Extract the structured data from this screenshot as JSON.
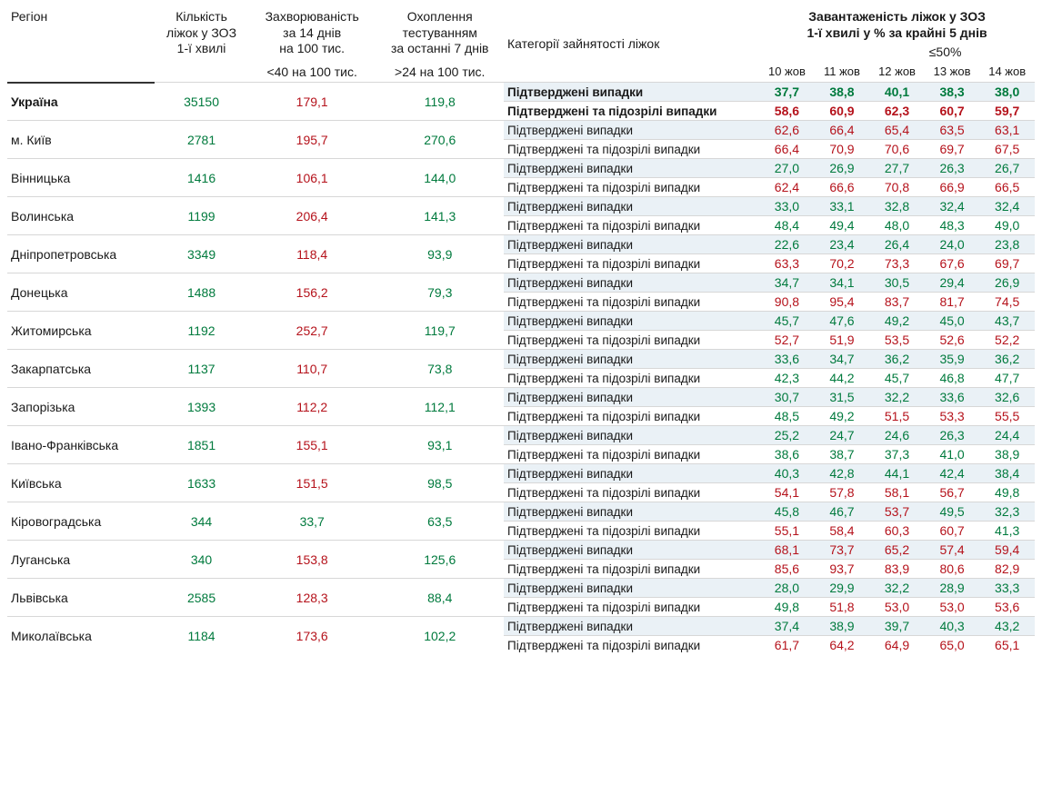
{
  "colors": {
    "green": "#007a3d",
    "red": "#b5121b",
    "altRowBg": "#eaf1f6",
    "border": "#999"
  },
  "headers": {
    "region": "Регіон",
    "beds": "Кількість\nліжок у ЗОЗ\n1-ї хвилі",
    "incidence": "Захворюваність\nза 14 днів\nна 100 тис.",
    "testing": "Охоплення\nтестуванням\nза останні 7 днів",
    "catHeader": "Категорії зайнятості ліжок",
    "occupancy": "Завантаженість ліжок у ЗОЗ\n1-ї хвилі у % за крайні 5 днів",
    "threshold50": "≤50%",
    "incThreshold": "<40 на 100 тис.",
    "testThreshold": ">24 на 100 тис."
  },
  "dates": [
    "10 жов",
    "11 жов",
    "12 жов",
    "13 жов",
    "14 жов"
  ],
  "catLabels": {
    "confirmed": "Підтверджені випадки",
    "confSusp": "Підтверджені та підозрілі випадки"
  },
  "rows": [
    {
      "region": "Україна",
      "bold": true,
      "beds": "35150",
      "incidence": {
        "v": "179,1",
        "c": "red"
      },
      "testing": {
        "v": "119,8",
        "c": "green"
      },
      "conf": [
        {
          "v": "37,7",
          "c": "green"
        },
        {
          "v": "38,8",
          "c": "green"
        },
        {
          "v": "40,1",
          "c": "green"
        },
        {
          "v": "38,3",
          "c": "green"
        },
        {
          "v": "38,0",
          "c": "green"
        }
      ],
      "susp": [
        {
          "v": "58,6",
          "c": "red"
        },
        {
          "v": "60,9",
          "c": "red"
        },
        {
          "v": "62,3",
          "c": "red"
        },
        {
          "v": "60,7",
          "c": "red"
        },
        {
          "v": "59,7",
          "c": "red"
        }
      ]
    },
    {
      "region": "м. Київ",
      "beds": "2781",
      "incidence": {
        "v": "195,7",
        "c": "red"
      },
      "testing": {
        "v": "270,6",
        "c": "green"
      },
      "conf": [
        {
          "v": "62,6",
          "c": "red"
        },
        {
          "v": "66,4",
          "c": "red"
        },
        {
          "v": "65,4",
          "c": "red"
        },
        {
          "v": "63,5",
          "c": "red"
        },
        {
          "v": "63,1",
          "c": "red"
        }
      ],
      "susp": [
        {
          "v": "66,4",
          "c": "red"
        },
        {
          "v": "70,9",
          "c": "red"
        },
        {
          "v": "70,6",
          "c": "red"
        },
        {
          "v": "69,7",
          "c": "red"
        },
        {
          "v": "67,5",
          "c": "red"
        }
      ]
    },
    {
      "region": "Вінницька",
      "beds": "1416",
      "incidence": {
        "v": "106,1",
        "c": "red"
      },
      "testing": {
        "v": "144,0",
        "c": "green"
      },
      "conf": [
        {
          "v": "27,0",
          "c": "green"
        },
        {
          "v": "26,9",
          "c": "green"
        },
        {
          "v": "27,7",
          "c": "green"
        },
        {
          "v": "26,3",
          "c": "green"
        },
        {
          "v": "26,7",
          "c": "green"
        }
      ],
      "susp": [
        {
          "v": "62,4",
          "c": "red"
        },
        {
          "v": "66,6",
          "c": "red"
        },
        {
          "v": "70,8",
          "c": "red"
        },
        {
          "v": "66,9",
          "c": "red"
        },
        {
          "v": "66,5",
          "c": "red"
        }
      ]
    },
    {
      "region": "Волинська",
      "beds": "1199",
      "incidence": {
        "v": "206,4",
        "c": "red"
      },
      "testing": {
        "v": "141,3",
        "c": "green"
      },
      "conf": [
        {
          "v": "33,0",
          "c": "green"
        },
        {
          "v": "33,1",
          "c": "green"
        },
        {
          "v": "32,8",
          "c": "green"
        },
        {
          "v": "32,4",
          "c": "green"
        },
        {
          "v": "32,4",
          "c": "green"
        }
      ],
      "susp": [
        {
          "v": "48,4",
          "c": "green"
        },
        {
          "v": "49,4",
          "c": "green"
        },
        {
          "v": "48,0",
          "c": "green"
        },
        {
          "v": "48,3",
          "c": "green"
        },
        {
          "v": "49,0",
          "c": "green"
        }
      ]
    },
    {
      "region": "Дніпропетровська",
      "beds": "3349",
      "incidence": {
        "v": "118,4",
        "c": "red"
      },
      "testing": {
        "v": "93,9",
        "c": "green"
      },
      "conf": [
        {
          "v": "22,6",
          "c": "green"
        },
        {
          "v": "23,4",
          "c": "green"
        },
        {
          "v": "26,4",
          "c": "green"
        },
        {
          "v": "24,0",
          "c": "green"
        },
        {
          "v": "23,8",
          "c": "green"
        }
      ],
      "susp": [
        {
          "v": "63,3",
          "c": "red"
        },
        {
          "v": "70,2",
          "c": "red"
        },
        {
          "v": "73,3",
          "c": "red"
        },
        {
          "v": "67,6",
          "c": "red"
        },
        {
          "v": "69,7",
          "c": "red"
        }
      ]
    },
    {
      "region": "Донецька",
      "beds": "1488",
      "incidence": {
        "v": "156,2",
        "c": "red"
      },
      "testing": {
        "v": "79,3",
        "c": "green"
      },
      "conf": [
        {
          "v": "34,7",
          "c": "green"
        },
        {
          "v": "34,1",
          "c": "green"
        },
        {
          "v": "30,5",
          "c": "green"
        },
        {
          "v": "29,4",
          "c": "green"
        },
        {
          "v": "26,9",
          "c": "green"
        }
      ],
      "susp": [
        {
          "v": "90,8",
          "c": "red"
        },
        {
          "v": "95,4",
          "c": "red"
        },
        {
          "v": "83,7",
          "c": "red"
        },
        {
          "v": "81,7",
          "c": "red"
        },
        {
          "v": "74,5",
          "c": "red"
        }
      ]
    },
    {
      "region": "Житомирська",
      "beds": "1192",
      "incidence": {
        "v": "252,7",
        "c": "red"
      },
      "testing": {
        "v": "119,7",
        "c": "green"
      },
      "conf": [
        {
          "v": "45,7",
          "c": "green"
        },
        {
          "v": "47,6",
          "c": "green"
        },
        {
          "v": "49,2",
          "c": "green"
        },
        {
          "v": "45,0",
          "c": "green"
        },
        {
          "v": "43,7",
          "c": "green"
        }
      ],
      "susp": [
        {
          "v": "52,7",
          "c": "red"
        },
        {
          "v": "51,9",
          "c": "red"
        },
        {
          "v": "53,5",
          "c": "red"
        },
        {
          "v": "52,6",
          "c": "red"
        },
        {
          "v": "52,2",
          "c": "red"
        }
      ]
    },
    {
      "region": "Закарпатська",
      "beds": "1137",
      "incidence": {
        "v": "110,7",
        "c": "red"
      },
      "testing": {
        "v": "73,8",
        "c": "green"
      },
      "conf": [
        {
          "v": "33,6",
          "c": "green"
        },
        {
          "v": "34,7",
          "c": "green"
        },
        {
          "v": "36,2",
          "c": "green"
        },
        {
          "v": "35,9",
          "c": "green"
        },
        {
          "v": "36,2",
          "c": "green"
        }
      ],
      "susp": [
        {
          "v": "42,3",
          "c": "green"
        },
        {
          "v": "44,2",
          "c": "green"
        },
        {
          "v": "45,7",
          "c": "green"
        },
        {
          "v": "46,8",
          "c": "green"
        },
        {
          "v": "47,7",
          "c": "green"
        }
      ]
    },
    {
      "region": "Запорізька",
      "beds": "1393",
      "incidence": {
        "v": "112,2",
        "c": "red"
      },
      "testing": {
        "v": "112,1",
        "c": "green"
      },
      "conf": [
        {
          "v": "30,7",
          "c": "green"
        },
        {
          "v": "31,5",
          "c": "green"
        },
        {
          "v": "32,2",
          "c": "green"
        },
        {
          "v": "33,6",
          "c": "green"
        },
        {
          "v": "32,6",
          "c": "green"
        }
      ],
      "susp": [
        {
          "v": "48,5",
          "c": "green"
        },
        {
          "v": "49,2",
          "c": "green"
        },
        {
          "v": "51,5",
          "c": "red"
        },
        {
          "v": "53,3",
          "c": "red"
        },
        {
          "v": "55,5",
          "c": "red"
        }
      ]
    },
    {
      "region": "Івано-Франківська",
      "beds": "1851",
      "incidence": {
        "v": "155,1",
        "c": "red"
      },
      "testing": {
        "v": "93,1",
        "c": "green"
      },
      "conf": [
        {
          "v": "25,2",
          "c": "green"
        },
        {
          "v": "24,7",
          "c": "green"
        },
        {
          "v": "24,6",
          "c": "green"
        },
        {
          "v": "26,3",
          "c": "green"
        },
        {
          "v": "24,4",
          "c": "green"
        }
      ],
      "susp": [
        {
          "v": "38,6",
          "c": "green"
        },
        {
          "v": "38,7",
          "c": "green"
        },
        {
          "v": "37,3",
          "c": "green"
        },
        {
          "v": "41,0",
          "c": "green"
        },
        {
          "v": "38,9",
          "c": "green"
        }
      ]
    },
    {
      "region": "Київська",
      "beds": "1633",
      "incidence": {
        "v": "151,5",
        "c": "red"
      },
      "testing": {
        "v": "98,5",
        "c": "green"
      },
      "conf": [
        {
          "v": "40,3",
          "c": "green"
        },
        {
          "v": "42,8",
          "c": "green"
        },
        {
          "v": "44,1",
          "c": "green"
        },
        {
          "v": "42,4",
          "c": "green"
        },
        {
          "v": "38,4",
          "c": "green"
        }
      ],
      "susp": [
        {
          "v": "54,1",
          "c": "red"
        },
        {
          "v": "57,8",
          "c": "red"
        },
        {
          "v": "58,1",
          "c": "red"
        },
        {
          "v": "56,7",
          "c": "red"
        },
        {
          "v": "49,8",
          "c": "green"
        }
      ]
    },
    {
      "region": "Кіровоградська",
      "beds": "344",
      "incidence": {
        "v": "33,7",
        "c": "green"
      },
      "testing": {
        "v": "63,5",
        "c": "green"
      },
      "conf": [
        {
          "v": "45,8",
          "c": "green"
        },
        {
          "v": "46,7",
          "c": "green"
        },
        {
          "v": "53,7",
          "c": "red"
        },
        {
          "v": "49,5",
          "c": "green"
        },
        {
          "v": "32,3",
          "c": "green"
        }
      ],
      "susp": [
        {
          "v": "55,1",
          "c": "red"
        },
        {
          "v": "58,4",
          "c": "red"
        },
        {
          "v": "60,3",
          "c": "red"
        },
        {
          "v": "60,7",
          "c": "red"
        },
        {
          "v": "41,3",
          "c": "green"
        }
      ]
    },
    {
      "region": "Луганська",
      "beds": "340",
      "incidence": {
        "v": "153,8",
        "c": "red"
      },
      "testing": {
        "v": "125,6",
        "c": "green"
      },
      "conf": [
        {
          "v": "68,1",
          "c": "red"
        },
        {
          "v": "73,7",
          "c": "red"
        },
        {
          "v": "65,2",
          "c": "red"
        },
        {
          "v": "57,4",
          "c": "red"
        },
        {
          "v": "59,4",
          "c": "red"
        }
      ],
      "susp": [
        {
          "v": "85,6",
          "c": "red"
        },
        {
          "v": "93,7",
          "c": "red"
        },
        {
          "v": "83,9",
          "c": "red"
        },
        {
          "v": "80,6",
          "c": "red"
        },
        {
          "v": "82,9",
          "c": "red"
        }
      ]
    },
    {
      "region": "Львівська",
      "beds": "2585",
      "incidence": {
        "v": "128,3",
        "c": "red"
      },
      "testing": {
        "v": "88,4",
        "c": "green"
      },
      "conf": [
        {
          "v": "28,0",
          "c": "green"
        },
        {
          "v": "29,9",
          "c": "green"
        },
        {
          "v": "32,2",
          "c": "green"
        },
        {
          "v": "28,9",
          "c": "green"
        },
        {
          "v": "33,3",
          "c": "green"
        }
      ],
      "susp": [
        {
          "v": "49,8",
          "c": "green"
        },
        {
          "v": "51,8",
          "c": "red"
        },
        {
          "v": "53,0",
          "c": "red"
        },
        {
          "v": "53,0",
          "c": "red"
        },
        {
          "v": "53,6",
          "c": "red"
        }
      ]
    },
    {
      "region": "Миколаївська",
      "beds": "1184",
      "incidence": {
        "v": "173,6",
        "c": "red"
      },
      "testing": {
        "v": "102,2",
        "c": "green"
      },
      "conf": [
        {
          "v": "37,4",
          "c": "green"
        },
        {
          "v": "38,9",
          "c": "green"
        },
        {
          "v": "39,7",
          "c": "green"
        },
        {
          "v": "40,3",
          "c": "green"
        },
        {
          "v": "43,2",
          "c": "green"
        }
      ],
      "susp": [
        {
          "v": "61,7",
          "c": "red"
        },
        {
          "v": "64,2",
          "c": "red"
        },
        {
          "v": "64,9",
          "c": "red"
        },
        {
          "v": "65,0",
          "c": "red"
        },
        {
          "v": "65,1",
          "c": "red"
        }
      ]
    }
  ]
}
